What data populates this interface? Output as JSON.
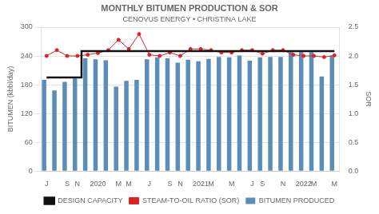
{
  "chart_data": {
    "type": "bar",
    "title": "MONTHLY BITUMEN PRODUCTION & SOR",
    "subtitle": "CENOVUS ENERGY • CHRISTINA LAKE",
    "categories": [
      "J",
      null,
      "S",
      "N",
      null,
      "2020",
      null,
      "M",
      "M",
      null,
      "J",
      null,
      "S",
      "N",
      null,
      "2021",
      "M",
      null,
      "M",
      null,
      "J",
      "S",
      null,
      "N",
      null,
      "2022",
      "M",
      null,
      "M"
    ],
    "series": [
      {
        "name": "BITUMEN PRODUCED",
        "type": "bar",
        "color": "#5b8db8",
        "values": [
          190,
          168,
          186,
          193,
          235,
          233,
          231,
          176,
          188,
          190,
          233,
          237,
          235,
          226,
          232,
          229,
          234,
          238,
          237,
          241,
          230,
          237,
          238,
          238,
          248,
          248,
          248,
          197,
          241
        ]
      },
      {
        "name": "STEAM-TO-OIL RATIO (SOR)",
        "type": "line",
        "color": "#dd2222",
        "marker": "circle",
        "axis": "y2",
        "values": [
          2.0,
          2.1,
          2.0,
          2.0,
          2.02,
          2.05,
          2.1,
          2.28,
          2.12,
          2.38,
          2.02,
          2.0,
          2.06,
          2.0,
          2.12,
          2.12,
          2.1,
          2.06,
          2.06,
          2.1,
          2.1,
          2.04,
          2.1,
          2.1,
          2.02,
          2.0,
          2.0,
          1.98,
          2.01
        ]
      },
      {
        "name": "DESIGN CAPACITY",
        "type": "line",
        "color": "#111111",
        "x": [
          0,
          3.4,
          3.4,
          28
        ],
        "values": [
          195,
          195,
          250,
          250
        ]
      }
    ],
    "ylabel": "BITUMEN (kbbl/day)",
    "y2label": "SOR",
    "ylim": [
      0,
      300
    ],
    "yticks": [
      0,
      60,
      120,
      180,
      240,
      300
    ],
    "y2lim": [
      0.0,
      2.5
    ],
    "y2ticks": [
      {
        "value": 0.0,
        "label": "0.0"
      },
      0.5,
      {
        "value": 1.0,
        "label": "1.0"
      },
      1.5,
      {
        "value": 2.0,
        "label": "2.0"
      },
      2.5
    ],
    "grid": true,
    "legend": "bottom"
  }
}
